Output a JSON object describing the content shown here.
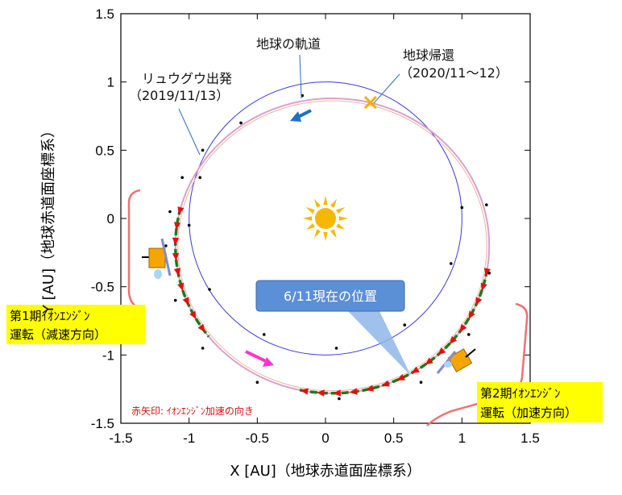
{
  "chart_data": {
    "type": "scatter",
    "xlabel": "X [AU]（地球赤道面座標系）",
    "ylabel": "Y [AU]（地球赤道面座標系）",
    "xlim": [
      -1.5,
      1.5
    ],
    "ylim": [
      -1.5,
      1.5
    ],
    "x_ticks": [
      "-1.5",
      "-1",
      "-0.5",
      "0",
      "0.5",
      "1",
      "1.5"
    ],
    "y_ticks": [
      "1.5",
      "1",
      "0.5",
      "0",
      "-0.5",
      "-1",
      "-1.5"
    ],
    "grid": false,
    "series": [
      {
        "name": "地球の軌道",
        "type": "circle",
        "center": [
          0,
          0
        ],
        "radius": 1.0,
        "color": "#3b3bd6"
      },
      {
        "name": "",
        "type": "ellipse",
        "center": [
          0.05,
          -0.2
        ],
        "rx": 1.15,
        "ry": 1.08,
        "color": "#d9a0c8"
      }
    ],
    "markers": {
      "sun": [
        0,
        0
      ],
      "earth_return": [
        0.33,
        0.85
      ],
      "earth_dots": [
        [
          -0.17,
          0.9
        ],
        [
          -0.62,
          0.7
        ],
        [
          -0.92,
          0.3
        ],
        [
          -1.0,
          -0.05
        ],
        [
          -0.85,
          -0.52
        ],
        [
          -0.45,
          -0.85
        ],
        [
          0.08,
          -0.95
        ],
        [
          0.58,
          -0.78
        ],
        [
          0.92,
          -0.33
        ],
        [
          1.0,
          0.08
        ]
      ],
      "traj_dots": [
        [
          -0.9,
          0.5
        ],
        [
          -1.05,
          0.3
        ],
        [
          -1.14,
          0.05
        ],
        [
          -1.17,
          -0.2
        ],
        [
          -1.1,
          -0.6
        ],
        [
          -0.9,
          -0.95
        ],
        [
          -0.5,
          -1.2
        ],
        [
          0.1,
          -1.32
        ],
        [
          0.7,
          -1.2
        ],
        [
          1.05,
          -0.85
        ],
        [
          1.2,
          -0.4
        ],
        [
          1.18,
          0.1
        ]
      ]
    },
    "annotations": {
      "earth_orbit_label": "地球の軌道",
      "departure_label": "リュウグウ出発",
      "departure_date": "（2019/11/13）",
      "return_label": "地球帰還",
      "return_date": "（2020/11〜12）",
      "current_position": "6/11現在の位置",
      "phase1_line1": "第1期ｲｵﾝｴﾝｼﾞﾝ",
      "phase1_line2": "運転（減速方向）",
      "phase2_line1": "第2期ｲｵﾝｴﾝｼﾞﾝ",
      "phase2_line2": "運転（加速方向）",
      "red_arrow_note": "赤矢印: ｲｵﾝｴﾝｼﾞﾝ加速の向き"
    },
    "colors": {
      "earth_orbit": "#3b3bd6",
      "trajectory": "#d9a0c8",
      "thrust": "#1a7a1a",
      "thrust_arrow": "#e01010",
      "brace": "#f07070",
      "highlight": "#ffff00",
      "callout": "#5b8fd6",
      "sun": "#f5b800",
      "return_marker": "#f5b000",
      "earth_arrow": "#1e6fc8",
      "probe_arrow": "#ff33cc"
    }
  }
}
